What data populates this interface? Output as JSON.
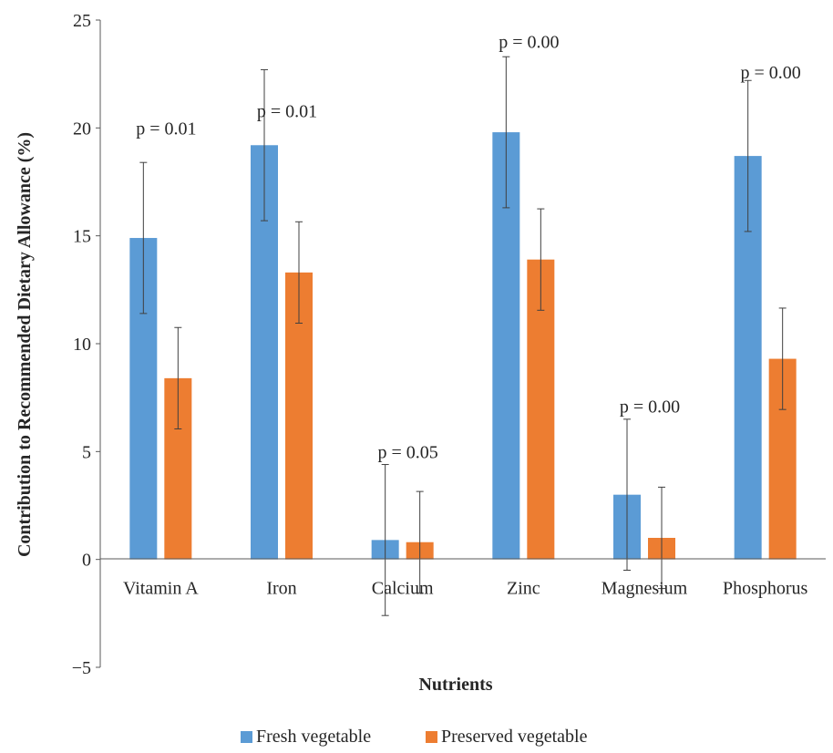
{
  "chart_data": {
    "type": "bar",
    "title": "",
    "xlabel": "Nutrients",
    "ylabel": "Contribution to Recommended Dietary Allowance (%)",
    "ylim": [
      -5,
      25
    ],
    "yticks": [
      -5,
      0,
      5,
      10,
      15,
      20,
      25
    ],
    "ytick_labels": [
      "−5",
      "0",
      "5",
      "10",
      "15",
      "20",
      "25"
    ],
    "grid": false,
    "legend_position": "bottom",
    "categories": [
      "Vitamin A",
      "Iron",
      "Calcium",
      "Zinc",
      "Magnesium",
      "Phosphorus"
    ],
    "series": [
      {
        "name": "Fresh vegetable",
        "color": "#5b9bd5",
        "values": [
          14.9,
          19.2,
          0.9,
          19.8,
          3.0,
          18.7
        ],
        "error": [
          3.5,
          3.5,
          3.5,
          3.5,
          3.5,
          3.5
        ]
      },
      {
        "name": "Preserved vegetable",
        "color": "#ed7d31",
        "values": [
          8.4,
          13.3,
          0.8,
          13.9,
          1.0,
          9.3
        ],
        "error": [
          2.35,
          2.35,
          2.35,
          2.35,
          2.35,
          2.35
        ]
      }
    ],
    "annotations": [
      "p = 0.01",
      "p = 0.01",
      "p = 0.05",
      "p = 0.00",
      "p = 0.00",
      "p = 0.00"
    ],
    "annotation_y": [
      20.0,
      20.8,
      5.0,
      24.0,
      7.1,
      22.6
    ]
  }
}
